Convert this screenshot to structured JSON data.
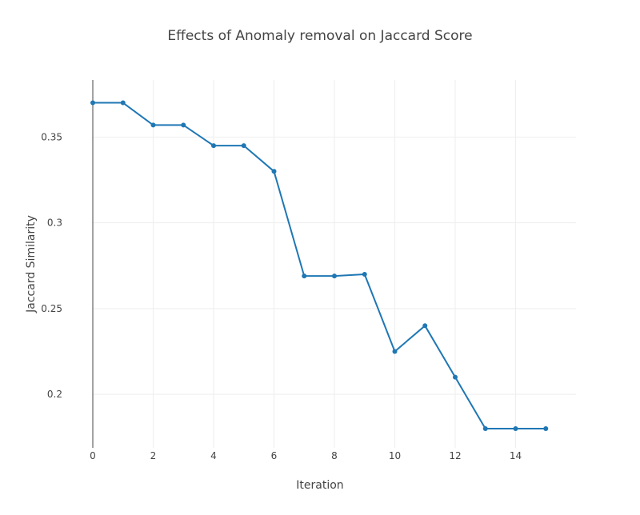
{
  "chart_data": {
    "type": "line",
    "title": "Effects of Anomaly removal on Jaccard Score",
    "xlabel": "Iteration",
    "ylabel": "Jaccard Similarity",
    "x": [
      0,
      1,
      2,
      3,
      4,
      5,
      6,
      7,
      8,
      9,
      10,
      11,
      12,
      13,
      14,
      15
    ],
    "series": [
      {
        "values": [
          0.37,
          0.37,
          0.357,
          0.357,
          0.345,
          0.345,
          0.33,
          0.269,
          0.269,
          0.27,
          0.225,
          0.24,
          0.21,
          0.18,
          0.18,
          0.18
        ],
        "color": "#1f77b4"
      }
    ],
    "xlim": [
      0,
      16
    ],
    "ylim": [
      0.1688,
      0.3833
    ],
    "xticks": [
      0,
      2,
      4,
      6,
      8,
      10,
      12,
      14
    ],
    "xtick_labels": [
      "0",
      "2",
      "4",
      "6",
      "8",
      "10",
      "12",
      "14"
    ],
    "yticks": [
      0.2,
      0.25,
      0.3,
      0.35
    ],
    "ytick_labels": [
      "0.2",
      "0.25",
      "0.3",
      "0.35"
    ],
    "grid": true,
    "markers": true,
    "legend": false
  }
}
